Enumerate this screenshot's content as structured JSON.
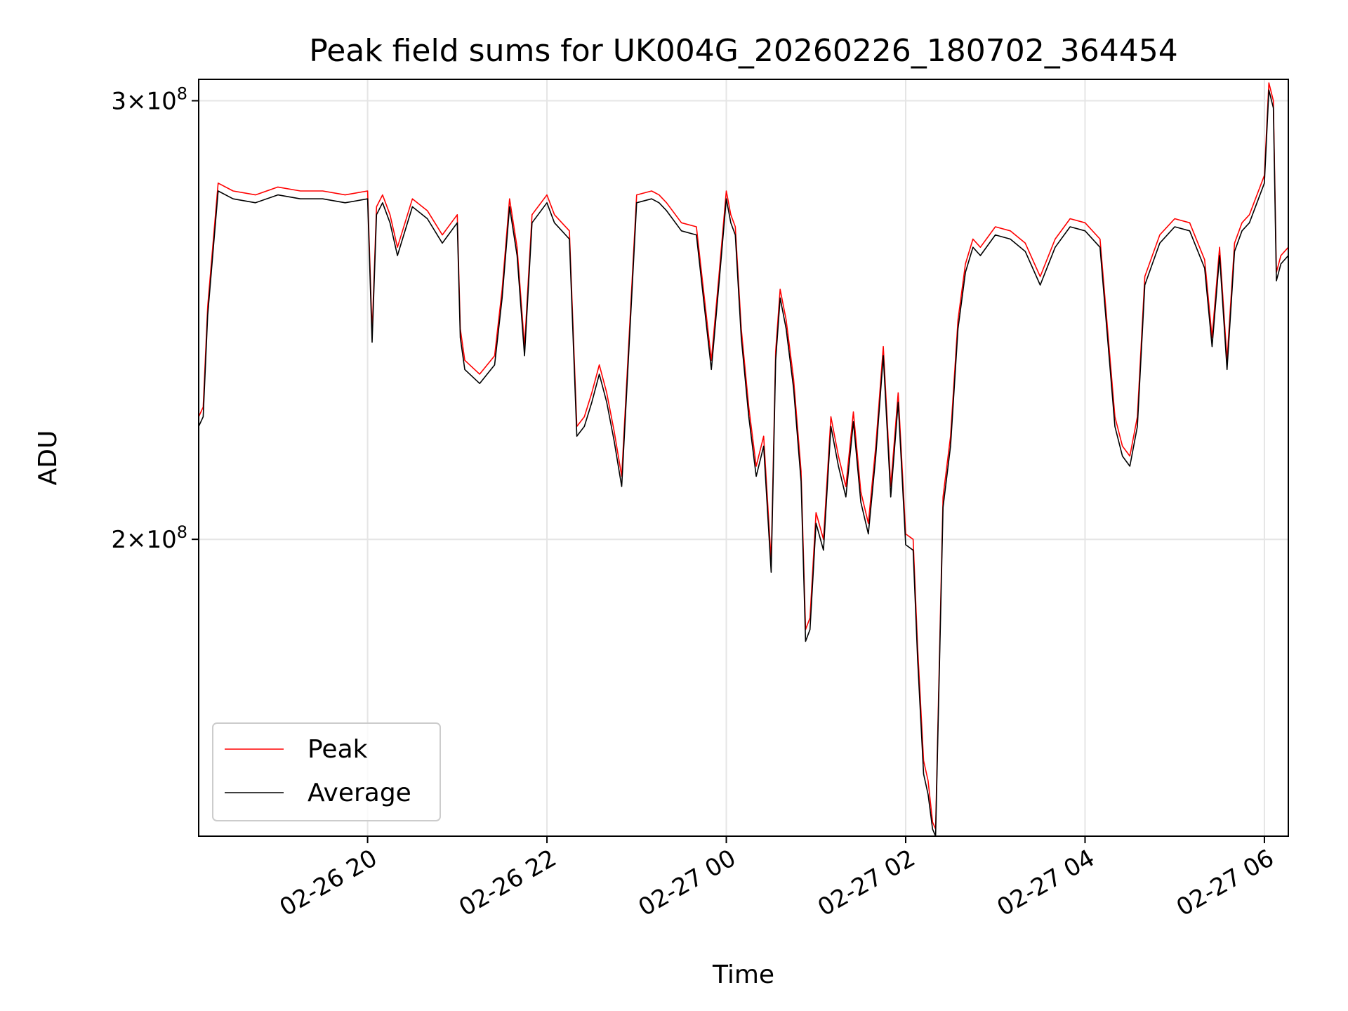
{
  "chart_data": {
    "type": "line",
    "title": "Peak field sums for UK004G_20260226_180702_364454",
    "xlabel": "Time",
    "ylabel": "ADU",
    "y_scale": "log",
    "ylim": [
      152000000,
      306000000
    ],
    "xlim": [
      "02-26 18:07",
      "02-27 06:16"
    ],
    "x_ticks": [
      {
        "at": "02-26 20:00",
        "label": "02-26 20"
      },
      {
        "at": "02-26 22:00",
        "label": "02-26 22"
      },
      {
        "at": "02-27 00:00",
        "label": "02-27 00"
      },
      {
        "at": "02-27 02:00",
        "label": "02-27 02"
      },
      {
        "at": "02-27 04:00",
        "label": "02-27 04"
      },
      {
        "at": "02-27 06:00",
        "label": "02-27 06"
      }
    ],
    "y_ticks": [
      {
        "value": 300000000,
        "base": "3",
        "exp": "8"
      },
      {
        "value": 200000000,
        "base": "2",
        "exp": "8"
      }
    ],
    "grid": true,
    "legend_position": "lower-left",
    "x": [
      "02-26 18:07",
      "02-26 18:10",
      "02-26 18:13",
      "02-26 18:20",
      "02-26 18:30",
      "02-26 18:45",
      "02-26 19:00",
      "02-26 19:15",
      "02-26 19:30",
      "02-26 19:45",
      "02-26 20:00",
      "02-26 20:03",
      "02-26 20:06",
      "02-26 20:10",
      "02-26 20:15",
      "02-26 20:20",
      "02-26 20:30",
      "02-26 20:40",
      "02-26 20:50",
      "02-26 21:00",
      "02-26 21:02",
      "02-26 21:05",
      "02-26 21:15",
      "02-26 21:25",
      "02-26 21:30",
      "02-26 21:35",
      "02-26 21:40",
      "02-26 21:45",
      "02-26 21:50",
      "02-26 22:00",
      "02-26 22:05",
      "02-26 22:10",
      "02-26 22:15",
      "02-26 22:20",
      "02-26 22:25",
      "02-26 22:30",
      "02-26 22:35",
      "02-26 22:40",
      "02-26 22:45",
      "02-26 22:50",
      "02-26 23:00",
      "02-26 23:10",
      "02-26 23:15",
      "02-26 23:20",
      "02-26 23:30",
      "02-26 23:40",
      "02-26 23:50",
      "02-26 23:55",
      "02-27 00:00",
      "02-27 00:03",
      "02-27 00:06",
      "02-27 00:10",
      "02-27 00:15",
      "02-27 00:20",
      "02-27 00:25",
      "02-27 00:30",
      "02-27 00:33",
      "02-27 00:36",
      "02-27 00:40",
      "02-27 00:45",
      "02-27 00:50",
      "02-27 00:53",
      "02-27 00:56",
      "02-27 01:00",
      "02-27 01:05",
      "02-27 01:10",
      "02-27 01:15",
      "02-27 01:20",
      "02-27 01:25",
      "02-27 01:30",
      "02-27 01:35",
      "02-27 01:40",
      "02-27 01:45",
      "02-27 01:50",
      "02-27 01:55",
      "02-27 02:00",
      "02-27 02:05",
      "02-27 02:08",
      "02-27 02:12",
      "02-27 02:15",
      "02-27 02:18",
      "02-27 02:20",
      "02-27 02:25",
      "02-27 02:30",
      "02-27 02:35",
      "02-27 02:40",
      "02-27 02:45",
      "02-27 02:50",
      "02-27 03:00",
      "02-27 03:10",
      "02-27 03:20",
      "02-27 03:30",
      "02-27 03:40",
      "02-27 03:50",
      "02-27 04:00",
      "02-27 04:10",
      "02-27 04:20",
      "02-27 04:25",
      "02-27 04:30",
      "02-27 04:35",
      "02-27 04:40",
      "02-27 04:45",
      "02-27 04:50",
      "02-27 05:00",
      "02-27 05:10",
      "02-27 05:20",
      "02-27 05:25",
      "02-27 05:30",
      "02-27 05:35",
      "02-27 05:40",
      "02-27 05:45",
      "02-27 05:50",
      "02-27 06:00",
      "02-27 06:03",
      "02-27 06:06",
      "02-27 06:08",
      "02-27 06:11",
      "02-27 06:16"
    ],
    "series": [
      {
        "name": "Peak",
        "color": "#ff0000",
        "values": [
          224000000,
          226000000,
          248000000,
          278000000,
          276000000,
          275000000,
          277000000,
          276000000,
          276000000,
          275000000,
          276000000,
          242000000,
          272000000,
          275000000,
          270000000,
          262000000,
          274000000,
          271000000,
          265000000,
          270000000,
          243000000,
          236000000,
          233000000,
          237000000,
          252000000,
          274000000,
          262000000,
          239000000,
          270000000,
          275000000,
          270000000,
          268000000,
          266000000,
          222000000,
          224000000,
          229000000,
          235000000,
          229000000,
          221000000,
          212000000,
          275000000,
          276000000,
          275000000,
          273000000,
          268000000,
          267000000,
          236000000,
          255000000,
          276000000,
          270000000,
          267000000,
          243000000,
          226000000,
          214000000,
          220000000,
          196000000,
          238000000,
          252000000,
          245000000,
          232000000,
          213000000,
          184000000,
          186000000,
          205000000,
          200000000,
          224000000,
          216000000,
          210000000,
          225000000,
          209000000,
          203000000,
          218000000,
          239000000,
          210000000,
          229000000,
          201000000,
          200000000,
          181000000,
          163000000,
          160000000,
          154000000,
          153000000,
          208000000,
          220000000,
          245000000,
          258000000,
          264000000,
          262000000,
          267000000,
          266000000,
          263000000,
          255000000,
          264000000,
          269000000,
          268000000,
          264000000,
          224000000,
          218000000,
          216000000,
          224000000,
          255000000,
          260000000,
          265000000,
          269000000,
          268000000,
          259000000,
          241000000,
          262000000,
          236000000,
          263000000,
          268000000,
          270000000,
          280000000,
          305000000,
          300000000,
          256000000,
          260000000,
          262000000
        ]
      },
      {
        "name": "Average",
        "color": "#000000",
        "values": [
          222000000,
          224000000,
          246000000,
          276000000,
          274000000,
          273000000,
          275000000,
          274000000,
          274000000,
          273000000,
          274000000,
          240000000,
          270000000,
          273000000,
          268000000,
          260000000,
          272000000,
          269000000,
          263000000,
          268000000,
          241000000,
          234000000,
          231000000,
          235000000,
          250000000,
          272000000,
          260000000,
          237000000,
          268000000,
          273000000,
          268000000,
          266000000,
          264000000,
          220000000,
          222000000,
          227000000,
          233000000,
          227000000,
          219000000,
          210000000,
          273000000,
          274000000,
          273000000,
          271000000,
          266000000,
          265000000,
          234000000,
          253000000,
          274000000,
          268000000,
          265000000,
          241000000,
          224000000,
          212000000,
          218000000,
          194000000,
          236000000,
          250000000,
          243000000,
          230000000,
          211000000,
          182000000,
          184000000,
          203000000,
          198000000,
          222000000,
          214000000,
          208000000,
          223000000,
          207000000,
          201000000,
          216000000,
          237000000,
          208000000,
          227000000,
          199000000,
          198000000,
          179000000,
          161000000,
          158000000,
          153000000,
          152000000,
          206000000,
          218000000,
          243000000,
          256000000,
          262000000,
          260000000,
          265000000,
          264000000,
          261000000,
          253000000,
          262000000,
          267000000,
          266000000,
          262000000,
          222000000,
          216000000,
          214000000,
          222000000,
          253000000,
          258000000,
          263000000,
          267000000,
          266000000,
          257000000,
          239000000,
          260000000,
          234000000,
          261000000,
          266000000,
          268000000,
          278000000,
          303000000,
          298000000,
          254000000,
          258000000,
          260000000
        ]
      }
    ]
  }
}
